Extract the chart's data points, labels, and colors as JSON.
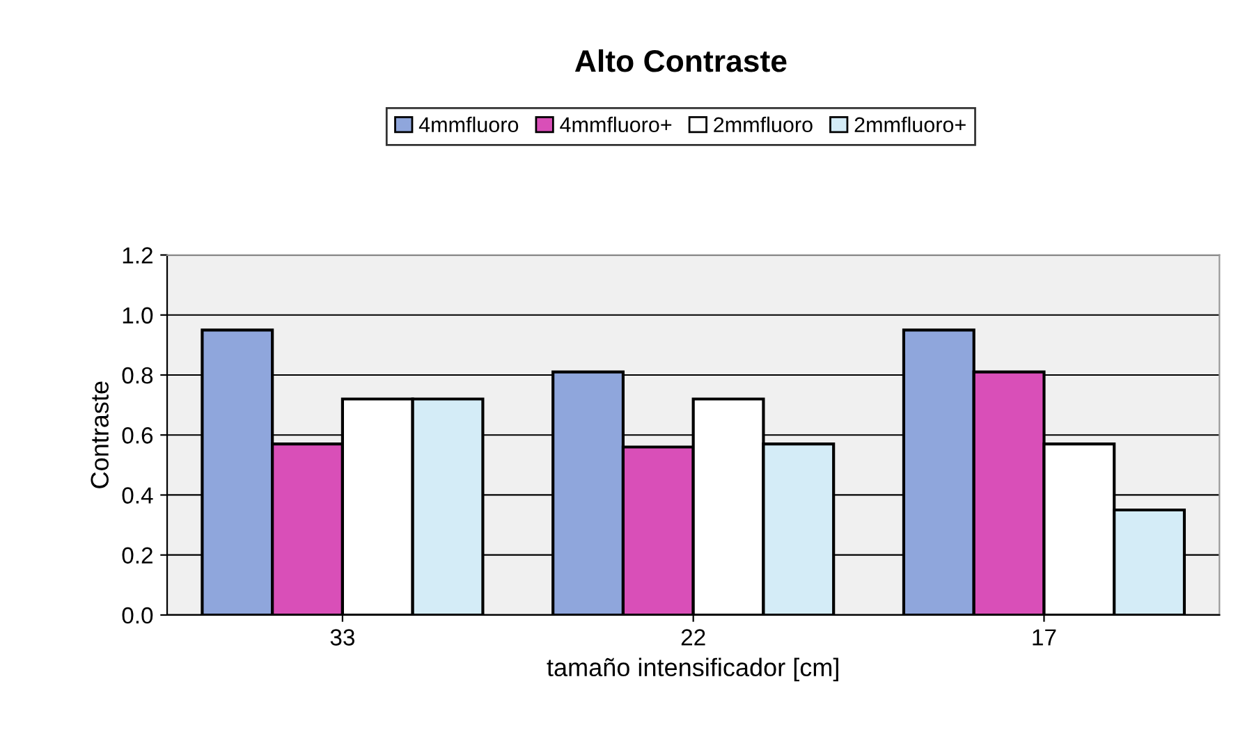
{
  "chart_data": {
    "type": "bar",
    "title": "Alto Contraste",
    "xlabel": "tamaño intensificador [cm]",
    "ylabel": "Contraste",
    "categories": [
      "33",
      "22",
      "17"
    ],
    "series": [
      {
        "name": "4mmfluoro",
        "color": "#8fa6dc",
        "values": [
          0.95,
          0.81,
          0.95
        ]
      },
      {
        "name": "4mmfluoro+",
        "color": "#d94fb8",
        "values": [
          0.57,
          0.56,
          0.81
        ]
      },
      {
        "name": "2mmfluoro",
        "color": "#ffffff",
        "values": [
          0.72,
          0.72,
          0.57
        ]
      },
      {
        "name": "2mmfluoro+",
        "color": "#d4ecf7",
        "values": [
          0.72,
          0.57,
          0.35
        ]
      }
    ],
    "ylim": [
      0,
      1.2
    ],
    "yticks": [
      {
        "value": 0,
        "label": "0.0"
      },
      {
        "value": 0.2,
        "label": "0.2"
      },
      {
        "value": 0.4,
        "label": "0.4"
      },
      {
        "value": 0.6,
        "label": "0.6"
      },
      {
        "value": 0.8,
        "label": "0.8"
      },
      {
        "value": 1.0,
        "label": "1.0"
      },
      {
        "value": 1.2,
        "label": "1.2"
      }
    ],
    "grid": "y",
    "legend": "top"
  }
}
